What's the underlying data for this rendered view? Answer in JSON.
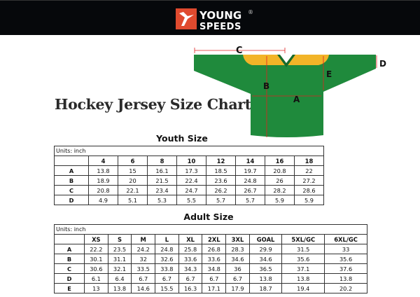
{
  "brand": {
    "name_line1": "YOUNG",
    "name_line2": "SPEEDS",
    "registered": "®",
    "accent": "#e04a2e"
  },
  "title": "Hockey Jersey Size Chart",
  "diagram": {
    "labels": [
      "A",
      "B",
      "C",
      "D",
      "E"
    ],
    "jersey_color": "#1f8a3c",
    "yoke_color": "#f2b428",
    "arrow_color": "#e02020"
  },
  "youth": {
    "title": "Youth Size",
    "units": "Units: inch",
    "headers": [
      "",
      "4",
      "6",
      "8",
      "10",
      "12",
      "14",
      "16",
      "18"
    ],
    "rows": [
      [
        "A",
        "13.8",
        "15",
        "16.1",
        "17.3",
        "18.5",
        "19.7",
        "20.8",
        "22"
      ],
      [
        "B",
        "18.9",
        "20",
        "21.5",
        "22.4",
        "23.6",
        "24.8",
        "26",
        "27.2"
      ],
      [
        "C",
        "20.8",
        "22.1",
        "23.4",
        "24.7",
        "26.2",
        "26.7",
        "28.2",
        "28.6"
      ],
      [
        "D",
        "4.9",
        "5.1",
        "5.3",
        "5.5",
        "5.7",
        "5.7",
        "5.9",
        "5.9"
      ]
    ]
  },
  "adult": {
    "title": "Adult Size",
    "units": "Units: inch",
    "headers": [
      "",
      "XS",
      "S",
      "M",
      "L",
      "XL",
      "2XL",
      "3XL",
      "GOAL",
      "5XL/GC",
      "6XL/GC"
    ],
    "rows": [
      [
        "A",
        "22.2",
        "23.5",
        "24.2",
        "24.8",
        "25.8",
        "26.8",
        "28.3",
        "29.9",
        "31.5",
        "33"
      ],
      [
        "B",
        "30.1",
        "31.1",
        "32",
        "32.6",
        "33.6",
        "33.6",
        "34.6",
        "34.6",
        "35.6",
        "35.6"
      ],
      [
        "C",
        "30.6",
        "32.1",
        "33.5",
        "33.8",
        "34.3",
        "34.8",
        "36",
        "36.5",
        "37.1",
        "37.6"
      ],
      [
        "D",
        "6.1",
        "6.4",
        "6.7",
        "6.7",
        "6.7",
        "6.7",
        "6.7",
        "13.8",
        "13.8",
        "13.8"
      ],
      [
        "E",
        "13",
        "13.8",
        "14.6",
        "15.5",
        "16.3",
        "17.1",
        "17.9",
        "18.7",
        "19.4",
        "20.2"
      ]
    ]
  }
}
